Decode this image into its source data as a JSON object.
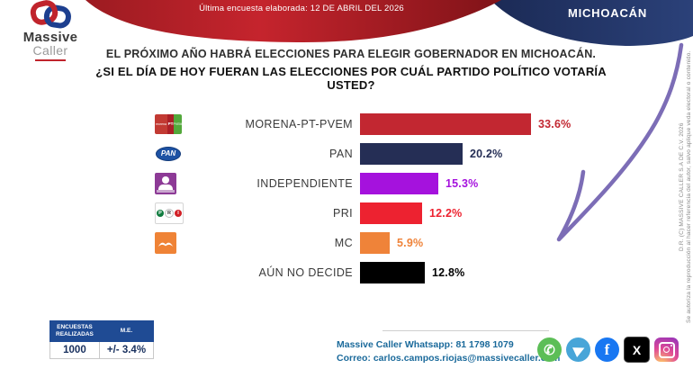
{
  "header": {
    "banner_text": "Última encuesta elaborada: 12 DE ABRIL DEL 2026",
    "state": "MICHOACÁN",
    "brand": {
      "name_line1": "Massive",
      "name_line2": "Caller"
    }
  },
  "title": {
    "line1": "EL PRÓXIMO AÑO HABRÁ ELECCIONES PARA ELEGIR GOBERNADOR EN MICHOACÁN.",
    "line2": "¿SI EL DÍA DE HOY FUERAN LAS ELECCIONES POR CUÁL PARTIDO POLÍTICO VOTARÍA USTED?"
  },
  "chart_data": {
    "type": "bar",
    "orientation": "horizontal",
    "categories": [
      "MORENA-PT-PVEM",
      "PAN",
      "INDEPENDIENTE",
      "PRI",
      "MC",
      "AÚN NO DECIDE"
    ],
    "values": [
      33.6,
      20.2,
      15.3,
      12.2,
      5.9,
      12.8
    ],
    "value_labels": [
      "33.6%",
      "20.2%",
      "15.3%",
      "12.2%",
      "5.9%",
      "12.8%"
    ],
    "bar_colors": [
      "#c22731",
      "#252e55",
      "#a512dd",
      "#ed2230",
      "#ef8339",
      "#000000"
    ],
    "logos": [
      "morena-pt-pvem",
      "pan",
      "independiente",
      "pri",
      "mc",
      null
    ],
    "xlim": [
      0,
      35
    ],
    "grid": false,
    "legend": false
  },
  "stats_table": {
    "headers": [
      "ENCUESTAS REALIZADAS",
      "M.E."
    ],
    "values": [
      "1000",
      "+/- 3.4%"
    ]
  },
  "footer": {
    "whatsapp_line": "Massive Caller Whatsapp: 81 1798 1079",
    "email_line": "Correo: carlos.campos.riojas@massivecaller.com",
    "social_icons": [
      "whatsapp-icon",
      "telegram-icon",
      "facebook-icon",
      "x-icon",
      "instagram-icon"
    ]
  },
  "copyright": {
    "line1": "D.R. (C) MASSIVE CALLER S.A DE C.V. 2026",
    "line2": "Se autoriza la reproducción al hacer referencia del autor, salvo aplique veda electoral o contenido."
  },
  "theme": {
    "ribbon_red": "#c5242d",
    "ribbon_red_dark": "#801318",
    "navy": "#1e2c58",
    "check_purple": "#7c6db6",
    "contact_blue": "#1b6a9b",
    "table_header_blue": "#1f4b94"
  }
}
